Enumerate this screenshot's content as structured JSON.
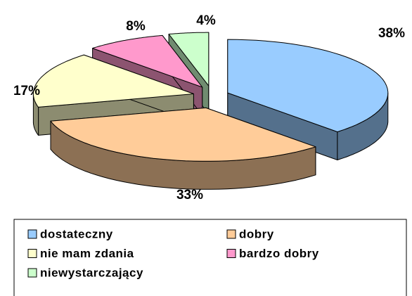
{
  "chart_data": {
    "type": "pie",
    "three_d": true,
    "exploded": true,
    "categories": [
      "dostateczny",
      "dobry",
      "nie mam zdania",
      "bardzo dobry",
      "niewystarczający"
    ],
    "values": [
      38,
      33,
      17,
      8,
      4
    ],
    "value_labels": [
      "38%",
      "33%",
      "17%",
      "8%",
      "4%"
    ],
    "colors": [
      "#99ccff",
      "#ffcc99",
      "#ffffcc",
      "#ff99cc",
      "#ccffcc"
    ],
    "legend": "bottom"
  }
}
